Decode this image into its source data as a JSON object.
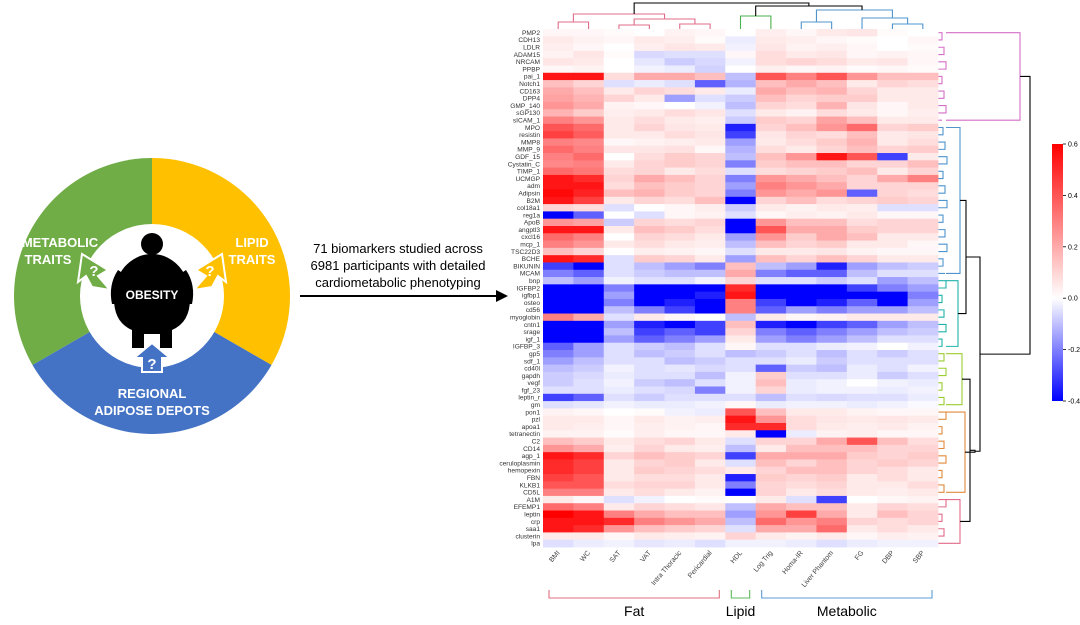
{
  "wheel": {
    "metabolic": {
      "line1": "METABOLIC",
      "line2": "TRAITS",
      "color": "#70ad47"
    },
    "lipid": {
      "line1": "LIPID",
      "line2": "TRAITS",
      "color": "#ffc000"
    },
    "adipose": {
      "line1": "REGIONAL",
      "line2": "ADIPOSE DEPOTS",
      "color": "#4472c4"
    },
    "center": "OBESITY",
    "qmark": "?"
  },
  "description": {
    "line1": "71 biomarkers studied across",
    "line2": "6981 participants with detailed",
    "line3": "cardiometabolic phenotyping"
  },
  "groups": [
    {
      "label": "Fat",
      "color": "#e0707e"
    },
    {
      "label": "Lipid",
      "color": "#5cb85c"
    },
    {
      "label": "Metabolic",
      "color": "#5b9bd5"
    }
  ],
  "chart_data": {
    "type": "heatmap",
    "columns": [
      "BMI",
      "WC",
      "SAT",
      "VAT",
      "Intra Thoracic",
      "Pericardial",
      "HDL",
      "Log Trig",
      "Homa-IR",
      "Liver Phantom",
      "FG",
      "DBP",
      "SBP"
    ],
    "rows": [
      "PMP2",
      "CDH13",
      "LDLR",
      "ADAM15",
      "NRCAM",
      "PPBP",
      "pai_1",
      "Notch1",
      "CD163",
      "DPP4",
      "GMP_140",
      "sGP130",
      "sICAM_1",
      "MPO",
      "resistin",
      "MMP8",
      "MMP_9",
      "GDF_15",
      "Cystatin_C",
      "TIMP_1",
      "UCMGP",
      "adm",
      "Adipsin",
      "B2M",
      "col18a1",
      "reg1a",
      "ApoB",
      "angptl3",
      "cxcl16",
      "mcp_1",
      "TSC22D3",
      "BCHE",
      "BIKUNIN",
      "MCAM",
      "bnp",
      "IGFBP2",
      "igfbp1",
      "osteo",
      "cd56",
      "myoglobin",
      "cntn1",
      "srage",
      "igf_1",
      "IGFBP_3",
      "gp5",
      "sdf_1",
      "cd40l",
      "gapdh",
      "vegf",
      "fgf_23",
      "leptin_r",
      "gm",
      "pon1",
      "pzl",
      "apoa1",
      "tetranectin",
      "C2",
      "CD14",
      "agp_1",
      "ceruloplasmin",
      "hemopexin",
      "FBN",
      "KLKB1",
      "CD5L",
      "A1M",
      "EFEMP1",
      "leptin",
      "crp",
      "saa1",
      "clusterin",
      "lpa"
    ],
    "values": [
      [
        0.02,
        0.02,
        0.01,
        0.0,
        0.03,
        0.02,
        0.0,
        0.04,
        0.02,
        0.05,
        0.06,
        0.01,
        0.0
      ],
      [
        0.05,
        0.03,
        0.02,
        0.05,
        0.04,
        0.01,
        -0.03,
        0.05,
        0.04,
        0.02,
        0.01,
        0.0,
        0.02
      ],
      [
        0.04,
        0.02,
        0.0,
        0.04,
        0.06,
        0.05,
        -0.02,
        0.06,
        0.03,
        0.04,
        0.02,
        0.0,
        0.01
      ],
      [
        0.03,
        0.06,
        0.01,
        -0.06,
        -0.05,
        -0.05,
        0.02,
        0.08,
        0.05,
        0.06,
        0.02,
        0.03,
        0.02
      ],
      [
        0.06,
        0.05,
        0.0,
        -0.04,
        -0.08,
        -0.06,
        -0.02,
        0.08,
        0.1,
        0.08,
        0.05,
        0.06,
        0.02
      ],
      [
        0.02,
        0.03,
        0.0,
        -0.02,
        -0.03,
        -0.07,
        0.0,
        0.04,
        0.02,
        0.03,
        0.01,
        0.02,
        0.01
      ],
      [
        0.55,
        0.55,
        0.08,
        0.2,
        0.2,
        0.15,
        -0.1,
        0.4,
        0.3,
        0.4,
        0.25,
        0.15,
        0.15
      ],
      [
        0.15,
        0.1,
        -0.05,
        -0.03,
        -0.05,
        -0.25,
        -0.12,
        0.15,
        0.2,
        0.15,
        0.05,
        0.1,
        0.08
      ],
      [
        0.2,
        0.15,
        0.05,
        0.1,
        0.08,
        0.05,
        -0.03,
        0.2,
        0.15,
        0.18,
        0.1,
        0.05,
        0.05
      ],
      [
        0.22,
        0.18,
        0.1,
        0.05,
        -0.15,
        -0.05,
        -0.08,
        0.15,
        0.1,
        0.12,
        0.12,
        0.05,
        0.05
      ],
      [
        0.25,
        0.2,
        0.03,
        0.02,
        0.0,
        -0.02,
        -0.1,
        0.1,
        0.08,
        0.18,
        0.06,
        0.02,
        0.05
      ],
      [
        0.18,
        0.12,
        0.04,
        0.05,
        0.08,
        0.06,
        -0.05,
        0.05,
        0.03,
        0.08,
        0.05,
        0.02,
        0.04
      ],
      [
        0.3,
        0.25,
        0.05,
        0.08,
        0.05,
        0.04,
        -0.08,
        0.12,
        0.1,
        0.22,
        0.15,
        0.05,
        0.05
      ],
      [
        0.4,
        0.35,
        0.05,
        0.1,
        0.06,
        0.05,
        -0.35,
        0.1,
        0.15,
        0.25,
        0.35,
        0.1,
        0.12
      ],
      [
        0.45,
        0.38,
        0.05,
        0.05,
        0.08,
        0.06,
        -0.3,
        0.06,
        0.1,
        0.08,
        0.15,
        0.05,
        0.06
      ],
      [
        0.3,
        0.28,
        0.02,
        0.03,
        0.04,
        0.05,
        -0.15,
        0.05,
        0.08,
        0.12,
        0.18,
        0.05,
        0.08
      ],
      [
        0.35,
        0.3,
        0.06,
        0.06,
        0.07,
        0.02,
        -0.12,
        0.08,
        0.05,
        0.1,
        0.15,
        0.1,
        0.12
      ],
      [
        0.3,
        0.35,
        0.0,
        0.08,
        0.12,
        0.1,
        -0.1,
        0.15,
        0.25,
        0.55,
        0.4,
        -0.3,
        0.05
      ],
      [
        0.28,
        0.3,
        0.05,
        0.1,
        0.12,
        0.1,
        -0.2,
        0.12,
        0.15,
        0.15,
        0.1,
        0.1,
        0.15
      ],
      [
        0.35,
        0.32,
        0.08,
        0.1,
        0.05,
        0.08,
        -0.05,
        0.08,
        0.1,
        0.12,
        0.15,
        0.05,
        0.1
      ],
      [
        0.55,
        0.5,
        0.1,
        0.2,
        0.15,
        0.1,
        -0.2,
        0.25,
        0.2,
        0.15,
        0.1,
        0.2,
        0.3
      ],
      [
        0.55,
        0.55,
        0.08,
        0.15,
        0.12,
        0.1,
        -0.15,
        0.3,
        0.25,
        0.2,
        0.1,
        0.1,
        0.1
      ],
      [
        0.58,
        0.52,
        0.15,
        0.18,
        0.12,
        0.1,
        -0.2,
        0.25,
        0.2,
        0.25,
        -0.25,
        0.1,
        0.08
      ],
      [
        0.55,
        0.45,
        0.05,
        0.1,
        0.08,
        0.15,
        -0.4,
        0.1,
        0.15,
        0.08,
        0.1,
        0.12,
        0.1
      ],
      [
        0.1,
        0.08,
        -0.05,
        0.0,
        0.02,
        0.04,
        -0.08,
        0.05,
        0.03,
        0.05,
        0.04,
        -0.05,
        -0.05
      ],
      [
        -0.45,
        -0.25,
        0.0,
        -0.05,
        0.02,
        0.03,
        -0.05,
        0.02,
        0.04,
        0.03,
        0.05,
        0.02,
        0.02
      ],
      [
        0.25,
        0.22,
        -0.08,
        0.1,
        0.08,
        0.1,
        -0.55,
        0.25,
        0.15,
        0.15,
        0.08,
        0.1,
        0.1
      ],
      [
        0.55,
        0.55,
        0.05,
        0.15,
        0.12,
        0.08,
        -0.4,
        0.4,
        0.2,
        0.2,
        0.12,
        0.1,
        0.1
      ],
      [
        0.35,
        0.3,
        0.0,
        0.1,
        0.08,
        0.05,
        -0.15,
        0.25,
        0.12,
        0.2,
        0.15,
        0.05,
        0.05
      ],
      [
        0.3,
        0.25,
        0.05,
        0.08,
        0.05,
        0.04,
        -0.1,
        0.15,
        0.1,
        0.12,
        0.05,
        0.05,
        0.02
      ],
      [
        0.15,
        0.1,
        0.0,
        0.04,
        0.03,
        0.02,
        -0.05,
        0.05,
        0.05,
        0.06,
        0.03,
        0.02,
        0.02
      ],
      [
        0.55,
        0.5,
        -0.05,
        0.12,
        0.1,
        0.05,
        -0.15,
        0.15,
        0.1,
        0.15,
        0.1,
        0.05,
        0.05
      ],
      [
        -0.3,
        -0.4,
        -0.05,
        -0.1,
        -0.15,
        -0.2,
        0.15,
        -0.1,
        -0.15,
        -0.35,
        -0.15,
        -0.1,
        -0.08
      ],
      [
        -0.2,
        -0.25,
        -0.05,
        -0.08,
        -0.1,
        -0.1,
        0.2,
        -0.2,
        -0.25,
        -0.25,
        -0.1,
        -0.05,
        -0.05
      ],
      [
        -0.1,
        -0.15,
        -0.02,
        -0.05,
        -0.05,
        -0.02,
        0.1,
        -0.05,
        -0.05,
        -0.08,
        -0.05,
        -0.15,
        -0.1
      ],
      [
        -0.55,
        -0.55,
        -0.2,
        -0.4,
        -0.45,
        -0.4,
        0.5,
        -0.45,
        -0.45,
        -0.5,
        -0.3,
        -0.2,
        -0.15
      ],
      [
        -0.55,
        -0.55,
        -0.15,
        -0.5,
        -0.55,
        -0.35,
        0.55,
        -0.4,
        -0.55,
        -0.5,
        -0.4,
        -0.55,
        -0.2
      ],
      [
        -0.55,
        -0.55,
        -0.2,
        -0.45,
        -0.35,
        -0.4,
        0.3,
        -0.3,
        -0.4,
        -0.35,
        -0.25,
        -0.4,
        -0.15
      ],
      [
        -0.55,
        -0.5,
        -0.1,
        -0.2,
        -0.3,
        -0.45,
        0.3,
        -0.25,
        -0.15,
        -0.2,
        -0.15,
        -0.15,
        -0.1
      ],
      [
        0.3,
        0.2,
        -0.05,
        0.05,
        0.02,
        0.0,
        -0.1,
        0.05,
        0.02,
        0.03,
        0.05,
        0.05,
        0.05
      ],
      [
        -0.45,
        -0.5,
        -0.15,
        -0.35,
        -0.4,
        -0.3,
        0.15,
        -0.35,
        -0.4,
        -0.3,
        -0.25,
        -0.15,
        -0.1
      ],
      [
        -0.55,
        -0.55,
        -0.1,
        -0.3,
        -0.25,
        -0.3,
        0.1,
        -0.2,
        -0.25,
        -0.2,
        -0.15,
        -0.1,
        -0.08
      ],
      [
        -0.55,
        -0.5,
        -0.15,
        -0.25,
        -0.2,
        -0.15,
        0.05,
        -0.15,
        -0.2,
        -0.15,
        -0.1,
        -0.05,
        -0.05
      ],
      [
        -0.25,
        -0.15,
        -0.05,
        -0.08,
        -0.1,
        -0.05,
        0.02,
        -0.05,
        -0.05,
        -0.03,
        -0.02,
        0.0,
        -0.02
      ],
      [
        -0.2,
        -0.15,
        -0.05,
        -0.1,
        -0.08,
        -0.05,
        -0.1,
        -0.08,
        -0.05,
        -0.1,
        -0.05,
        -0.08,
        -0.05
      ],
      [
        -0.15,
        -0.1,
        -0.05,
        -0.05,
        -0.1,
        -0.08,
        -0.05,
        -0.05,
        -0.03,
        -0.08,
        -0.05,
        -0.05,
        -0.05
      ],
      [
        -0.1,
        -0.08,
        -0.02,
        -0.05,
        -0.04,
        -0.06,
        -0.05,
        -0.25,
        -0.08,
        -0.1,
        -0.03,
        -0.05,
        -0.02
      ],
      [
        -0.08,
        -0.06,
        -0.03,
        -0.05,
        -0.05,
        -0.1,
        -0.02,
        0.12,
        -0.05,
        -0.05,
        -0.03,
        -0.08,
        -0.05
      ],
      [
        -0.08,
        -0.05,
        -0.02,
        -0.08,
        -0.1,
        -0.05,
        -0.02,
        0.15,
        -0.03,
        -0.02,
        0.0,
        -0.02,
        -0.03
      ],
      [
        -0.05,
        -0.05,
        -0.03,
        -0.05,
        -0.06,
        -0.2,
        -0.02,
        0.1,
        -0.03,
        -0.02,
        -0.02,
        -0.03,
        -0.02
      ],
      [
        -0.3,
        -0.25,
        -0.05,
        -0.08,
        -0.05,
        -0.05,
        -0.05,
        -0.1,
        -0.05,
        -0.06,
        -0.05,
        -0.05,
        -0.03
      ],
      [
        -0.05,
        -0.04,
        -0.02,
        -0.03,
        -0.03,
        -0.02,
        0.02,
        -0.03,
        -0.02,
        -0.02,
        -0.03,
        -0.02,
        -0.01
      ],
      [
        0.03,
        0.02,
        0.0,
        0.01,
        -0.02,
        -0.03,
        0.4,
        0.15,
        0.05,
        0.05,
        0.03,
        0.02,
        0.02
      ],
      [
        0.05,
        0.05,
        0.02,
        0.05,
        0.03,
        0.04,
        0.55,
        0.25,
        0.08,
        0.06,
        0.05,
        0.06,
        0.05
      ],
      [
        0.05,
        0.04,
        0.02,
        0.04,
        0.03,
        0.02,
        0.5,
        0.5,
        0.08,
        0.05,
        0.04,
        0.05,
        0.03
      ],
      [
        0.03,
        0.03,
        0.01,
        0.04,
        0.02,
        0.02,
        0.05,
        -0.45,
        -0.03,
        0.03,
        0.04,
        0.02,
        0.02
      ],
      [
        0.15,
        0.12,
        0.05,
        0.08,
        0.1,
        0.05,
        -0.05,
        0.1,
        0.1,
        0.2,
        0.4,
        0.15,
        0.08
      ],
      [
        0.25,
        0.2,
        0.04,
        0.1,
        0.05,
        0.04,
        -0.1,
        0.05,
        0.15,
        0.15,
        0.15,
        0.1,
        0.1
      ],
      [
        0.55,
        0.5,
        0.1,
        0.15,
        0.12,
        0.1,
        -0.3,
        0.2,
        0.2,
        0.2,
        0.12,
        0.1,
        0.12
      ],
      [
        0.5,
        0.45,
        0.05,
        0.1,
        0.12,
        0.05,
        -0.05,
        0.15,
        0.1,
        0.15,
        0.1,
        0.12,
        0.1
      ],
      [
        0.5,
        0.45,
        0.05,
        0.12,
        0.1,
        0.08,
        0.05,
        0.1,
        0.15,
        0.15,
        0.1,
        0.08,
        0.05
      ],
      [
        0.45,
        0.4,
        0.05,
        0.08,
        0.08,
        0.05,
        -0.35,
        0.12,
        0.1,
        0.12,
        0.05,
        0.08,
        0.05
      ],
      [
        0.4,
        0.4,
        0.08,
        0.1,
        0.1,
        0.05,
        -0.2,
        0.1,
        0.08,
        0.1,
        0.05,
        0.05,
        0.08
      ],
      [
        0.3,
        0.3,
        0.05,
        0.08,
        0.05,
        0.03,
        -0.45,
        0.1,
        0.05,
        0.08,
        0.05,
        0.04,
        0.05
      ],
      [
        0.05,
        0.02,
        -0.05,
        -0.02,
        0.0,
        0.01,
        0.0,
        0.05,
        -0.05,
        -0.3,
        0.0,
        0.02,
        0.03
      ],
      [
        0.35,
        0.3,
        0.05,
        0.1,
        0.08,
        0.06,
        -0.1,
        0.2,
        0.15,
        0.15,
        0.05,
        0.1,
        0.08
      ],
      [
        0.6,
        0.55,
        0.3,
        0.2,
        0.15,
        0.15,
        -0.15,
        0.25,
        0.45,
        0.2,
        0.05,
        0.15,
        0.1
      ],
      [
        0.55,
        0.55,
        0.5,
        0.3,
        0.25,
        0.2,
        -0.1,
        0.35,
        0.25,
        0.3,
        0.1,
        0.08,
        0.1
      ],
      [
        0.55,
        0.5,
        0.25,
        0.15,
        0.12,
        0.1,
        -0.05,
        0.2,
        0.2,
        0.35,
        0.05,
        0.08,
        0.05
      ],
      [
        0.05,
        0.05,
        0.02,
        0.05,
        0.04,
        0.03,
        0.1,
        0.05,
        0.03,
        0.05,
        0.02,
        0.04,
        0.03
      ],
      [
        -0.05,
        -0.03,
        -0.02,
        -0.04,
        -0.03,
        -0.05,
        -0.02,
        -0.02,
        -0.03,
        -0.05,
        -0.03,
        -0.02,
        -0.02
      ]
    ],
    "colorbar": {
      "min": -0.4,
      "max": 0.6,
      "ticks": [
        "0.6",
        "0.4",
        "0.2",
        "0.0",
        "-0.2",
        "-0.4"
      ]
    }
  }
}
